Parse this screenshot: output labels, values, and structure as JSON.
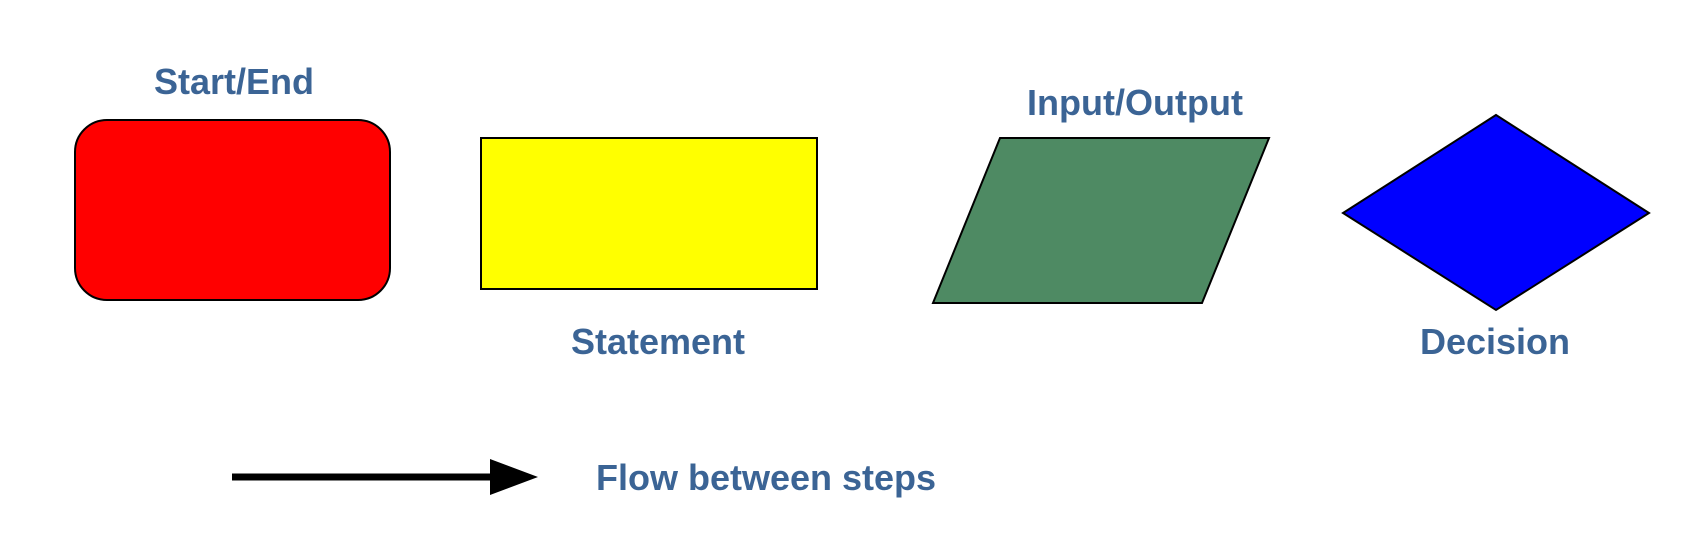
{
  "legend": {
    "start_end": {
      "label": "Start/End",
      "fill": "#ff0000"
    },
    "statement": {
      "label": "Statement",
      "fill": "#ffff00"
    },
    "input_output": {
      "label": "Input/Output",
      "fill": "#4e8a63"
    },
    "decision": {
      "label": "Decision",
      "fill": "#0000ff"
    },
    "flow": {
      "label": "Flow between steps",
      "stroke": "#000000"
    }
  },
  "colors": {
    "label_text": "#3b6495",
    "outline": "#000000"
  }
}
